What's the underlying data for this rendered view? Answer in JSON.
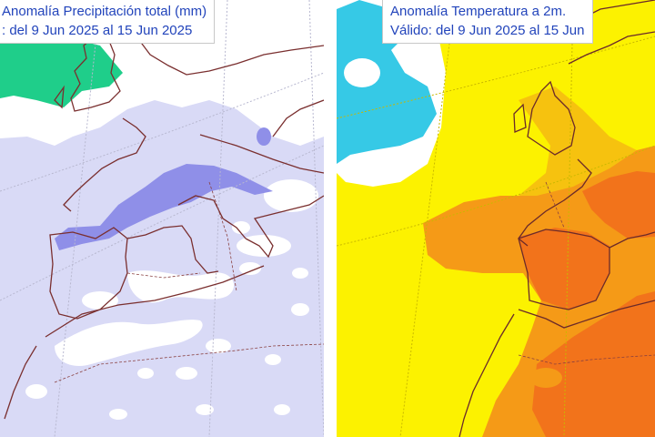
{
  "left_map": {
    "title": "Anomalía Precipitación total (mm)",
    "subtitle": ": del 9 Jun 2025 al 15 Jun 2025",
    "colors": {
      "background": "#d9daf6",
      "dry_white": "#ffffff",
      "wet_blue": "#8f8fe8",
      "wet_green": "#1fce8a",
      "coastline": "#7a2f2f",
      "graticule": "#b8b8d0"
    }
  },
  "right_map": {
    "title": "Anomalía Temperatura a 2m.",
    "subtitle": "Válido: del 9 Jun 2025 al 15 Jun",
    "colors": {
      "background": "#fcf200",
      "neutral_white": "#ffffff",
      "cold_cyan": "#36c9e6",
      "warm_light": "#f6c20f",
      "warm_orange": "#f59a17",
      "hot_orange": "#f2731b",
      "coastline": "#6b2a2a"
    }
  }
}
